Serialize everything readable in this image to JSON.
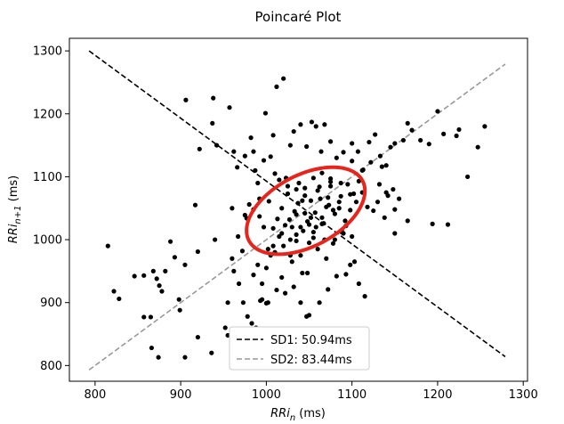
{
  "chart_data": {
    "type": "scatter",
    "title": "Poincaré Plot",
    "xlabel": "RRi",
    "xlabel_sub": "n",
    "xlabel_unit": " (ms)",
    "ylabel": "RRi",
    "ylabel_sub": "n+1",
    "ylabel_unit": " (ms)",
    "xlim": [
      770,
      1305
    ],
    "ylim": [
      775,
      1320
    ],
    "xticks": [
      800,
      900,
      1000,
      1100,
      1200,
      1300
    ],
    "yticks": [
      800,
      900,
      1000,
      1100,
      1200,
      1300
    ],
    "grid": false,
    "legend_position": "bottom-center",
    "colors": {
      "points": "#000000",
      "sd1": "#000000",
      "sd2": "#999999",
      "ellipse": "#e8251c"
    },
    "series": [
      {
        "name": "SD1: 50.94ms",
        "type": "line",
        "style": "dashed",
        "color": "#000000",
        "x": [
          793,
          1279
        ],
        "y": [
          1300,
          814
        ]
      },
      {
        "name": "SD2: 83.44ms",
        "type": "line",
        "style": "dashed",
        "color": "#999999",
        "x": [
          793,
          1279
        ],
        "y": [
          793,
          1279
        ]
      }
    ],
    "ellipse": {
      "center": [
        1046,
        1046
      ],
      "semi_axis_sd2": 83.44,
      "semi_axis_sd1": 50.94,
      "angle_deg": 45
    },
    "points": {
      "x": [
        815,
        822,
        828,
        846,
        857,
        865,
        868,
        872,
        875,
        878,
        882,
        888,
        893,
        898,
        905,
        906,
        917,
        920,
        922,
        938,
        937,
        940,
        942,
        957,
        960,
        962,
        966,
        967,
        972,
        975,
        977,
        982,
        985,
        987,
        990,
        992,
        997,
        999,
        1005,
        1008,
        1012,
        1020,
        1023,
        1028,
        1032,
        1040,
        1047,
        1053,
        1058,
        1064,
        1068,
        1075,
        1082,
        1090,
        1100,
        1107,
        1113,
        1120,
        1127,
        1133,
        1140,
        1145,
        1150,
        1160,
        1165,
        1170,
        1180,
        1190,
        1200,
        1207,
        1222,
        1225,
        1247,
        1255,
        1013,
        1018,
        1025,
        1030,
        1035,
        1038,
        1042,
        1045,
        1050,
        1055,
        1060,
        1065,
        1070,
        1072,
        1078,
        1085,
        1088,
        1092,
        1095,
        1098,
        1003,
        1008,
        1015,
        1022,
        1027,
        1033,
        1037,
        1043,
        1048,
        1052,
        1057,
        1062,
        1067,
        1073,
        1080,
        1087,
        1093,
        1098,
        1102,
        1108,
        1010,
        1020,
        1030,
        1040,
        1050,
        1060,
        1070,
        1080,
        1090,
        1100,
        1035,
        1045,
        1055,
        1065,
        1075,
        1085,
        1010,
        1015,
        1025,
        1035,
        1045,
        1055,
        1065,
        1075,
        997,
        992,
        985,
        980,
        975,
        1105,
        1112,
        1118,
        1125,
        1132,
        1138,
        1142,
        1148,
        1155,
        985,
        990,
        995,
        1000,
        1005,
        1002,
        1018,
        1028,
        1032,
        1048,
        1058,
        1068,
        1078,
        1088,
        1098,
        1108,
        1115,
        955,
        960,
        962,
        968,
        973,
        978,
        983,
        988,
        993,
        1000,
        995,
        1012,
        1022,
        1035,
        1042,
        1050,
        1062,
        1072,
        1082,
        1093,
        1103,
        1008,
        1018,
        1028,
        1040,
        1052,
        1063,
        1075,
        1087,
        1100,
        1112,
        1122,
        1135,
        1140,
        1150
      ],
      "y": [
        990,
        918,
        906,
        942,
        943,
        877,
        950,
        938,
        927,
        918,
        950,
        997,
        972,
        905,
        960,
        1222,
        1055,
        981,
        1144,
        1225,
        1185,
        1000,
        1150,
        1210,
        1050,
        1140,
        1115,
        1005,
        982,
        1133,
        1034,
        1162,
        1140,
        1110,
        1090,
        1065,
        1126,
        1201,
        1132,
        1166,
        1243,
        1256,
        1098,
        1150,
        1172,
        1183,
        1148,
        1187,
        1180,
        1140,
        1183,
        1156,
        1130,
        1139,
        1153,
        1140,
        1111,
        1155,
        1167,
        1133,
        1118,
        1147,
        1153,
        1158,
        1185,
        1174,
        1158,
        1152,
        1204,
        1168,
        1165,
        1175,
        1147,
        1180,
        1033,
        1050,
        1073,
        1020,
        1008,
        1090,
        1062,
        1042,
        1024,
        1012,
        1078,
        1035,
        1052,
        1067,
        1047,
        1060,
        1015,
        1030,
        1088,
        1072,
        1061,
        1018,
        1005,
        1023,
        1032,
        1045,
        1058,
        1014,
        1029,
        1062,
        1043,
        1084,
        1026,
        1055,
        1041,
        1069,
        1022,
        1047,
        1073,
        1093,
        980,
        990,
        965,
        975,
        995,
        985,
        970,
        1000,
        1010,
        1005,
        1040,
        1070,
        1003,
        1025,
        1092,
        1050,
        1105,
        1095,
        1085,
        1080,
        1082,
        1098,
        1106,
        1097,
        1020,
        1037,
        1048,
        1056,
        1039,
        1060,
        1075,
        1052,
        1046,
        1088,
        1035,
        1070,
        1080,
        1065,
        944,
        960,
        930,
        955,
        975,
        985,
        940,
        975,
        925,
        947,
        1020,
        1000,
        994,
        1012,
        960,
        930,
        910,
        900,
        970,
        950,
        930,
        900,
        878,
        867,
        860,
        903,
        899,
        905,
        920,
        915,
        998,
        947,
        880,
        900,
        921,
        942,
        945,
        965,
        990,
        1010,
        1000,
        1020,
        1035,
        1065,
        1085,
        1090,
        1125,
        1110,
        1123,
        1116,
        1075,
        1048
      ]
    },
    "outlier_points": {
      "x": [
        857,
        866,
        874,
        899,
        905,
        920,
        936,
        952,
        955,
        960,
        1002,
        1040,
        1047,
        1130,
        1150,
        1165,
        1194,
        1212,
        1235,
        1002,
        963
      ],
      "y": [
        877,
        828,
        813,
        888,
        813,
        845,
        820,
        860,
        848,
        838,
        900,
        900,
        878,
        1060,
        1010,
        1030,
        1025,
        1024,
        1100,
        830,
        840
      ]
    }
  }
}
